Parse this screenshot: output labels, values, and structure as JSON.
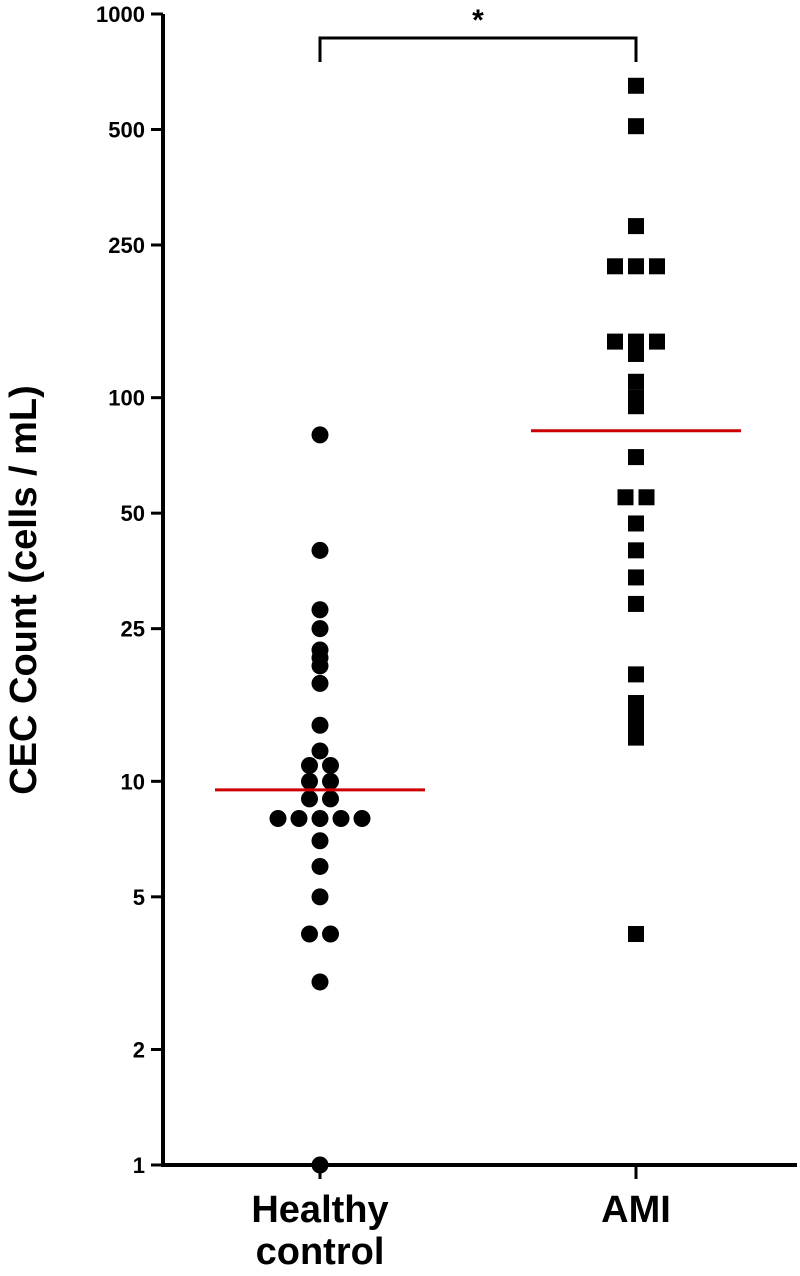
{
  "chart_data": {
    "type": "scatter",
    "title": "",
    "ylabel": "CEC Count (cells / mL)",
    "xlabel": "",
    "yscale": "log",
    "ylim": [
      1,
      1000
    ],
    "yticks": [
      1,
      2,
      5,
      10,
      25,
      50,
      100,
      250,
      500,
      1000
    ],
    "ytick_labels": [
      "1",
      "2",
      "5",
      "10",
      "25",
      "50",
      "100",
      "250",
      "500",
      "1000"
    ],
    "categories": [
      "Healthy\ncontrol",
      "AMI"
    ],
    "category_lines": [
      [
        "Healthy",
        "control"
      ],
      [
        "AMI"
      ]
    ],
    "series": [
      {
        "category": "Healthy\ncontrol",
        "marker": "circle",
        "median": 9.5,
        "values": [
          80,
          40,
          28,
          25,
          22,
          21,
          20,
          18,
          14,
          12,
          11,
          11,
          10,
          10,
          9,
          9,
          8,
          8,
          8,
          8,
          8,
          7,
          6,
          5,
          4,
          4,
          3,
          1
        ]
      },
      {
        "category": "AMI",
        "marker": "square",
        "median": 82,
        "values": [
          650,
          510,
          280,
          220,
          220,
          220,
          140,
          140,
          140,
          130,
          110,
          100,
          95,
          70,
          55,
          55,
          47,
          40,
          34,
          29,
          19,
          16,
          15,
          14,
          13,
          4
        ]
      }
    ],
    "median_color": "#cc0000",
    "marker_color": "#000000",
    "significance": {
      "label": "*",
      "between": [
        "Healthy\ncontrol",
        "AMI"
      ]
    },
    "grid": false,
    "legend": "none"
  }
}
